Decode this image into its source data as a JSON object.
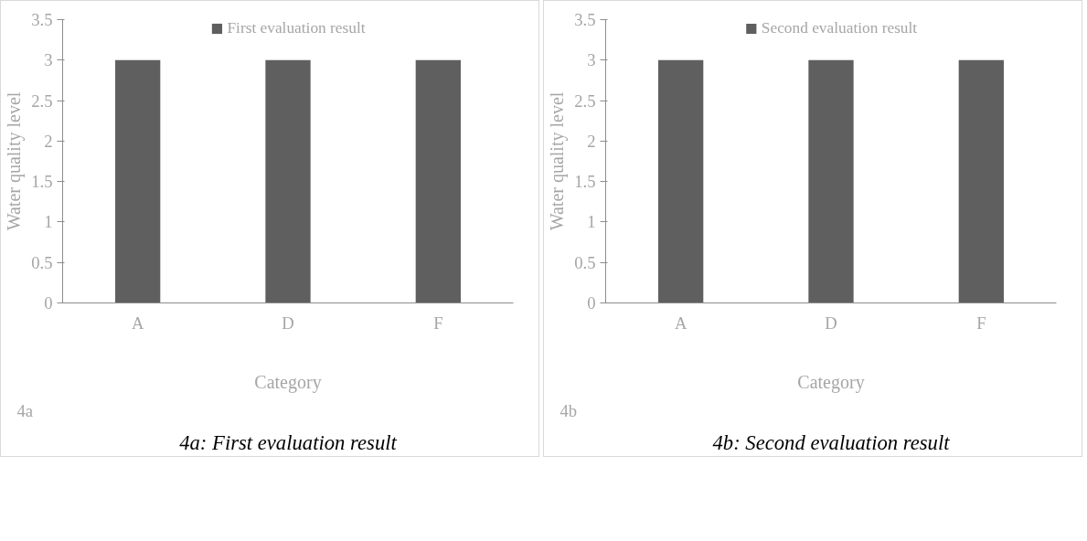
{
  "chart_data": [
    {
      "type": "bar",
      "ylabel": "Water quality level",
      "xlabel": "Category",
      "categories": [
        "A",
        "D",
        "F"
      ],
      "series": [
        {
          "name": "First evaluation result",
          "color": "#5f5f5f",
          "values": [
            3,
            3,
            3
          ]
        }
      ],
      "ylim": [
        0,
        3.5
      ],
      "yticks": [
        0,
        0.5,
        1,
        1.5,
        2,
        2.5,
        3,
        3.5
      ],
      "legend": "top",
      "grid": false,
      "annotations": [
        "4a",
        "4a: First evaluation result"
      ]
    },
    {
      "type": "bar",
      "ylabel": "Water quality level",
      "xlabel": "Category",
      "categories": [
        "A",
        "D",
        "F"
      ],
      "series": [
        {
          "name": "Second evaluation result",
          "color": "#5f5f5f",
          "values": [
            3,
            3,
            3
          ]
        }
      ],
      "ylim": [
        0,
        3.5
      ],
      "yticks": [
        0,
        0.5,
        1,
        1.5,
        2,
        2.5,
        3,
        3.5
      ],
      "legend": "top",
      "grid": false,
      "annotations": [
        "4b",
        "4b: Second evaluation result"
      ]
    }
  ]
}
